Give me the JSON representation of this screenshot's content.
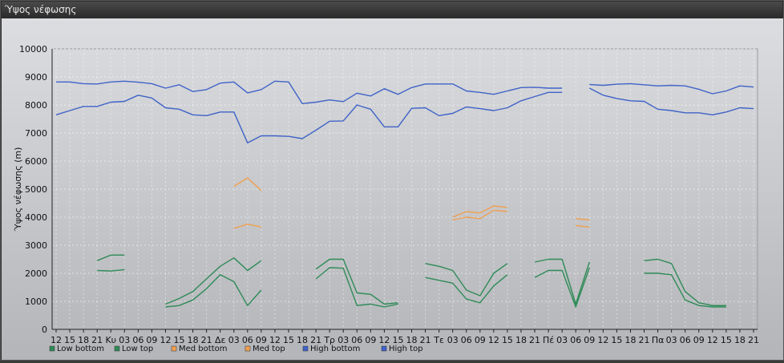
{
  "window": {
    "title": "Ύψος νέφωσης"
  },
  "chart_data": {
    "type": "line",
    "title": "",
    "xlabel": "",
    "ylabel": "Ύψος νέφωσης (m)",
    "ylim": [
      0,
      10000
    ],
    "yticks": [
      0,
      1000,
      2000,
      3000,
      4000,
      5000,
      6000,
      7000,
      8000,
      9000,
      10000
    ],
    "grid": true,
    "legend_position": "bottom-left",
    "categories": [
      "12",
      "15",
      "18",
      "21",
      "Κυ",
      "03",
      "06",
      "09",
      "12",
      "15",
      "18",
      "21",
      "Δε",
      "03",
      "06",
      "09",
      "12",
      "15",
      "18",
      "21",
      "Τρ",
      "03",
      "06",
      "09",
      "12",
      "15",
      "18",
      "21",
      "Τε",
      "03",
      "06",
      "09",
      "12",
      "15",
      "18",
      "21",
      "Πέ",
      "03",
      "06",
      "09",
      "12",
      "15",
      "18",
      "21",
      "Πα",
      "03",
      "06",
      "09",
      "12",
      "15",
      "18",
      "21"
    ],
    "series": [
      {
        "name": "Low bottom",
        "color": "#2e8b57",
        "values": [
          null,
          null,
          null,
          2100,
          2080,
          2130,
          null,
          null,
          800,
          850,
          1050,
          1450,
          1950,
          1700,
          850,
          1400,
          null,
          null,
          null,
          1800,
          2200,
          2180,
          850,
          900,
          800,
          900,
          null,
          1850,
          1750,
          1650,
          1080,
          950,
          1550,
          1950,
          null,
          1850,
          2100,
          2100,
          800,
          2200,
          null,
          null,
          null,
          2000,
          2000,
          1950,
          1050,
          850,
          800,
          800,
          null,
          null
        ]
      },
      {
        "name": "Low top",
        "color": "#2e8b57",
        "values": [
          null,
          null,
          null,
          2450,
          2650,
          2650,
          null,
          null,
          900,
          1100,
          1350,
          1800,
          2250,
          2550,
          2100,
          2450,
          null,
          null,
          null,
          2150,
          2500,
          2500,
          1300,
          1250,
          900,
          950,
          null,
          2350,
          2250,
          2100,
          1400,
          1200,
          2000,
          2350,
          null,
          2400,
          2500,
          2500,
          900,
          2400,
          null,
          null,
          null,
          2450,
          2500,
          2350,
          1350,
          950,
          850,
          850,
          null,
          null
        ]
      },
      {
        "name": "Med bottom",
        "color": "#f0a050",
        "values": [
          null,
          null,
          null,
          null,
          null,
          null,
          null,
          null,
          null,
          null,
          null,
          null,
          null,
          3600,
          3750,
          3650,
          null,
          null,
          null,
          null,
          null,
          null,
          null,
          null,
          null,
          null,
          null,
          null,
          null,
          3900,
          4000,
          3950,
          4250,
          4200,
          null,
          null,
          null,
          null,
          3700,
          3650,
          null,
          null,
          null,
          null,
          null,
          null,
          null,
          null,
          null,
          null,
          null,
          null
        ]
      },
      {
        "name": "Med top",
        "color": "#f0a050",
        "values": [
          null,
          null,
          null,
          null,
          null,
          null,
          null,
          null,
          null,
          null,
          null,
          null,
          null,
          5100,
          5400,
          4950,
          null,
          null,
          null,
          null,
          null,
          null,
          null,
          null,
          null,
          null,
          null,
          null,
          null,
          4000,
          4200,
          4150,
          4400,
          4350,
          null,
          null,
          null,
          null,
          3950,
          3900,
          null,
          null,
          null,
          null,
          null,
          null,
          null,
          null,
          null,
          null,
          null,
          null
        ]
      },
      {
        "name": "High bottom",
        "color": "#3f63c8",
        "values": [
          7650,
          7800,
          7950,
          7950,
          8100,
          8130,
          8350,
          8250,
          7900,
          7850,
          7650,
          7620,
          7750,
          7750,
          6650,
          6900,
          6900,
          6880,
          6800,
          7100,
          7420,
          7430,
          8000,
          7850,
          7220,
          7220,
          7880,
          7900,
          7620,
          7700,
          7930,
          7870,
          7800,
          7900,
          8150,
          8300,
          8450,
          8450,
          null,
          8600,
          8350,
          8230,
          8150,
          8130,
          7850,
          7800,
          7720,
          7720,
          7650,
          7750,
          7900,
          7870
        ]
      },
      {
        "name": "High top",
        "color": "#3f63c8",
        "values": [
          8820,
          8820,
          8760,
          8750,
          8820,
          8850,
          8810,
          8760,
          8600,
          8720,
          8480,
          8550,
          8780,
          8820,
          8430,
          8550,
          8850,
          8820,
          8050,
          8100,
          8180,
          8120,
          8420,
          8320,
          8580,
          8380,
          8620,
          8750,
          8750,
          8750,
          8500,
          8450,
          8380,
          8500,
          8620,
          8630,
          8600,
          8600,
          null,
          8730,
          8700,
          8740,
          8760,
          8720,
          8680,
          8700,
          8680,
          8560,
          8400,
          8500,
          8680,
          8640
        ]
      }
    ]
  }
}
